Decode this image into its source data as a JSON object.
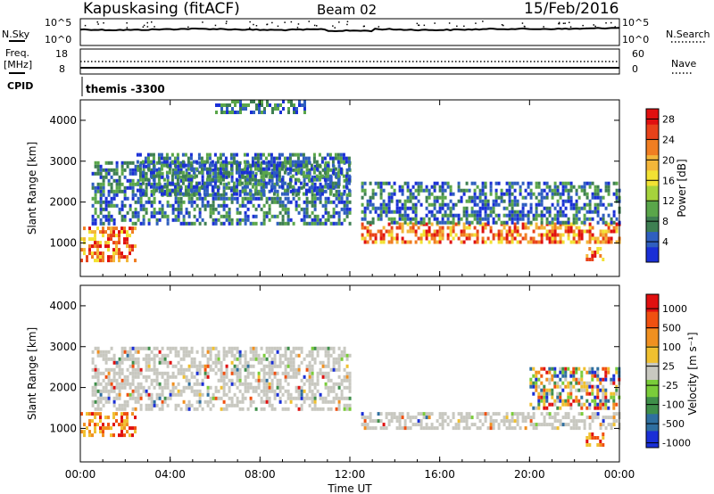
{
  "header": {
    "station": "Kapuskasing (fitACF)",
    "beam": "Beam 02",
    "date": "15/Feb/2016"
  },
  "panel_labels": {
    "nsky": "N.Sky",
    "nsky_ticks": [
      "10^5",
      "10^0"
    ],
    "nsearch": "N.Search",
    "nsearch_ticks": [
      "10^5",
      "10^0"
    ],
    "freq_line1": "Freq.",
    "freq_line2": "[MHz]",
    "freq_ticks": [
      "18",
      "8"
    ],
    "nave": "Nave",
    "nave_ticks": [
      "60",
      "0"
    ],
    "cpid": "CPID",
    "cpid_value": "themis -3300"
  },
  "colors": {
    "power_scale": [
      "#1a2fd6",
      "#2f5fbf",
      "#3e7f52",
      "#5aa64a",
      "#a6d33c",
      "#f2e233",
      "#f3b63a",
      "#f07e22",
      "#e8421a",
      "#e01010"
    ],
    "velocity_scale": [
      "#1a2fd6",
      "#2f6fa0",
      "#3f8f4a",
      "#7acc3a",
      "#c8c8c0",
      "#f0c030",
      "#f09020",
      "#f05010",
      "#e01010"
    ]
  },
  "chart_data": [
    {
      "type": "heatmap",
      "title": "",
      "xlabel": "",
      "ylabel": "Slant Range [km]",
      "x_ticks": [
        "00:00",
        "04:00",
        "08:00",
        "12:00",
        "16:00",
        "20:00",
        "00:00"
      ],
      "y_ticks": [
        "1000",
        "2000",
        "3000",
        "4000"
      ],
      "xlim": [
        0,
        24
      ],
      "ylim": [
        180,
        4500
      ],
      "colorbar": {
        "label": "Power [dB]",
        "ticks": [
          "4",
          "8",
          "12",
          "16",
          "20",
          "24",
          "28"
        ],
        "range": [
          0,
          30
        ]
      },
      "features": [
        {
          "t": [
            0.0,
            2.5
          ],
          "r": [
            600,
            1400
          ],
          "level": "high"
        },
        {
          "t": [
            0.5,
            12.0
          ],
          "r": [
            1500,
            3000
          ],
          "level": "low"
        },
        {
          "t": [
            2.5,
            12.0
          ],
          "r": [
            2200,
            3200
          ],
          "level": "low"
        },
        {
          "t": [
            12.5,
            24.0
          ],
          "r": [
            1000,
            1500
          ],
          "level": "high"
        },
        {
          "t": [
            12.5,
            24.0
          ],
          "r": [
            1500,
            2500
          ],
          "level": "low"
        },
        {
          "t": [
            22.5,
            23.3
          ],
          "r": [
            600,
            900
          ],
          "level": "high"
        },
        {
          "t": [
            6.0,
            10.0
          ],
          "r": [
            4200,
            4500
          ],
          "level": "low"
        }
      ]
    },
    {
      "type": "heatmap",
      "title": "",
      "xlabel": "Time UT",
      "ylabel": "Slant Range [km]",
      "x_ticks": [
        "00:00",
        "04:00",
        "08:00",
        "12:00",
        "16:00",
        "20:00",
        "00:00"
      ],
      "y_ticks": [
        "1000",
        "2000",
        "3000",
        "4000"
      ],
      "xlim": [
        0,
        24
      ],
      "ylim": [
        180,
        4500
      ],
      "colorbar": {
        "label": "Velocity [m s⁻¹]",
        "ticks": [
          "1000",
          "500",
          "100",
          "25",
          "-25",
          "-100",
          "-500",
          "-1000"
        ],
        "range": [
          1000,
          -1000
        ]
      },
      "features": [
        {
          "t": [
            0.0,
            2.5
          ],
          "r": [
            800,
            1400
          ],
          "level": "negative"
        },
        {
          "t": [
            0.5,
            12.0
          ],
          "r": [
            1500,
            3000
          ],
          "level": "ground"
        },
        {
          "t": [
            12.5,
            24.0
          ],
          "r": [
            1000,
            1400
          ],
          "level": "ground"
        },
        {
          "t": [
            20.0,
            24.0
          ],
          "r": [
            1500,
            2500
          ],
          "level": "mixed"
        },
        {
          "t": [
            22.5,
            23.3
          ],
          "r": [
            600,
            900
          ],
          "level": "negative"
        }
      ]
    }
  ]
}
